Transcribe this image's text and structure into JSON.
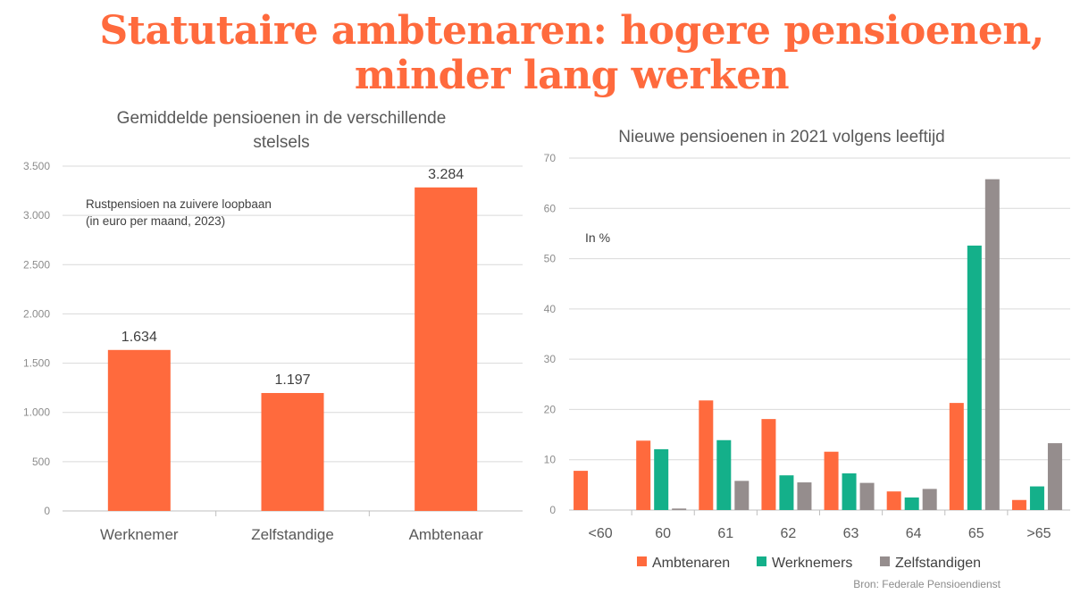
{
  "title": {
    "line1": "Statutaire ambtenaren: hogere pensioenen,",
    "line2": "minder lang werken"
  },
  "colors": {
    "accent": "#ff6a3d",
    "ambtenaren": "#ff6a3d",
    "werknemers": "#14b08a",
    "zelfstandigen": "#958d8d",
    "grid": "#d9d9d9",
    "text": "#595959"
  },
  "source": "Bron: Federale Pensioendienst",
  "chart_data": [
    {
      "type": "bar",
      "title": "Gemiddelde pensioenen in de verschillende stelsels",
      "annotation": [
        "Rustpensioen na zuivere loopbaan",
        "(in euro per maand, 2023)"
      ],
      "categories": [
        "Werknemer",
        "Zelfstandige",
        "Ambtenaar"
      ],
      "values": [
        1634,
        1197,
        3284
      ],
      "value_labels": [
        "1.634",
        "1.197",
        "3.284"
      ],
      "ylim": [
        0,
        3500
      ],
      "yticks": [
        0,
        500,
        1000,
        1500,
        2000,
        2500,
        3000,
        3500
      ],
      "ytick_labels": [
        "0",
        "500",
        "1.000",
        "1.500",
        "2.000",
        "2.500",
        "3.000",
        "3.500"
      ],
      "grid": true,
      "legend": "none"
    },
    {
      "type": "bar",
      "title": "Nieuwe pensioenen in 2021 volgens leeftijd",
      "annotation": "In %",
      "categories": [
        "<60",
        "60",
        "61",
        "62",
        "63",
        "64",
        "65",
        ">65"
      ],
      "series": [
        {
          "name": "Ambtenaren",
          "color": "#ff6a3d",
          "values": [
            7.8,
            13.8,
            21.8,
            18.1,
            11.6,
            3.7,
            21.3,
            2.0
          ]
        },
        {
          "name": "Werknemers",
          "color": "#14b08a",
          "values": [
            0,
            12.1,
            13.9,
            6.9,
            7.3,
            2.5,
            52.6,
            4.7
          ]
        },
        {
          "name": "Zelfstandigen",
          "color": "#958d8d",
          "values": [
            0,
            0.3,
            5.8,
            5.5,
            5.4,
            4.2,
            65.8,
            13.3
          ]
        }
      ],
      "ylim": [
        0,
        70
      ],
      "yticks": [
        0,
        10,
        20,
        30,
        40,
        50,
        60,
        70
      ],
      "grid": true,
      "legend": "bottom"
    }
  ]
}
